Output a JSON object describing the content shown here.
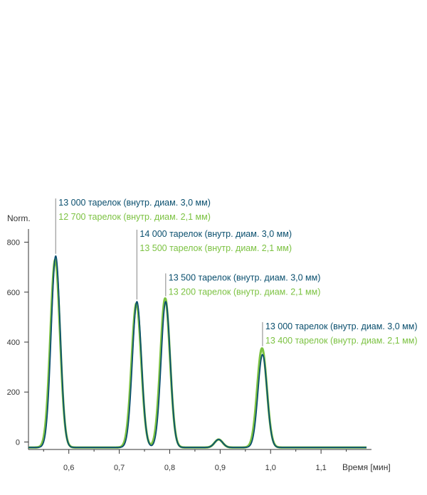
{
  "chart_data": {
    "type": "line",
    "title": "",
    "ylabel": "Norm.",
    "xlabel": "Время [мин]",
    "xlim": [
      0.52,
      1.2
    ],
    "ylim": [
      -30,
      830
    ],
    "x_ticks": [
      {
        "value": 0.6,
        "label": "0,6"
      },
      {
        "value": 0.7,
        "label": "0,7"
      },
      {
        "value": 0.8,
        "label": "0,8"
      },
      {
        "value": 0.9,
        "label": "0,9"
      },
      {
        "value": 1.0,
        "label": "1,0"
      },
      {
        "value": 1.1,
        "label": "1,1"
      }
    ],
    "y_ticks": [
      {
        "value": 0,
        "label": "0"
      },
      {
        "value": 200,
        "label": "200"
      },
      {
        "value": 400,
        "label": "400"
      },
      {
        "value": 600,
        "label": "600"
      },
      {
        "value": 800,
        "label": "800"
      }
    ],
    "colors": {
      "series_1": "#0a4f6e",
      "series_2": "#7cc242",
      "axis": "#333333"
    },
    "baseline": -22,
    "series": [
      {
        "color": "#7cc242",
        "peaks": [
          {
            "x": 0.573,
            "y": 730,
            "width": 0.0095
          },
          {
            "x": 0.734,
            "y": 555,
            "width": 0.0095
          },
          {
            "x": 0.791,
            "y": 575,
            "width": 0.0095
          },
          {
            "x": 0.897,
            "y": 10,
            "width": 0.008
          },
          {
            "x": 0.983,
            "y": 375,
            "width": 0.0095
          }
        ]
      },
      {
        "color": "#0a4f6e",
        "peaks": [
          {
            "x": 0.574,
            "y": 745,
            "width": 0.009
          },
          {
            "x": 0.735,
            "y": 562,
            "width": 0.009
          },
          {
            "x": 0.792,
            "y": 562,
            "width": 0.009
          },
          {
            "x": 0.897,
            "y": 10,
            "width": 0.008
          },
          {
            "x": 0.984,
            "y": 350,
            "width": 0.009
          }
        ]
      }
    ],
    "annotations": [
      {
        "x": 0.574,
        "y_line_top": 975,
        "line1": "13 000 тарелок (внутр. диам. 3,0 мм)",
        "line2": "12 700 тарелок (внутр. диам. 2,1 мм)"
      },
      {
        "x": 0.735,
        "y_line_top": 850,
        "line1": "14 000 тарелок (внутр. диам. 3,0 мм)",
        "line2": "13 500 тарелок (внутр. диам. 2,1 мм)"
      },
      {
        "x": 0.792,
        "y_line_top": 675,
        "line1": "13 500 тарелок (внутр. диам. 3,0 мм)",
        "line2": "13 200 тарелок (внутр. диам. 2,1 мм)"
      },
      {
        "x": 0.984,
        "y_line_top": 480,
        "line1": "13 000 тарелок (внутр. диам. 3,0 мм)",
        "line2": "13 400 тарелок (внутр. диам. 2,1 мм)"
      }
    ]
  }
}
